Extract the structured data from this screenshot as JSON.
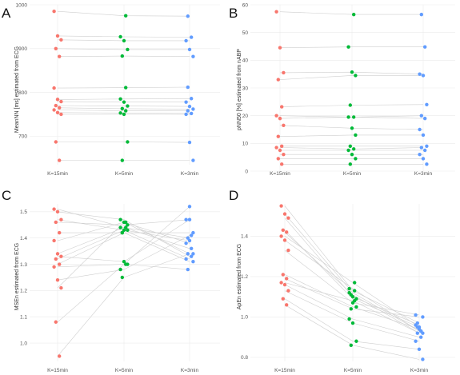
{
  "colors": {
    "t15": "#F8766D",
    "t5": "#00BA38",
    "t3": "#619CFF"
  },
  "chart_data": [
    {
      "type": "scatter",
      "panel_label": "A",
      "categories": [
        "K=15min",
        "K=5min",
        "K=3min"
      ],
      "ylabel": "MeanNN [ms] estimated from ECG",
      "ylim": [
        635,
        1000
      ],
      "yticks": [
        "700",
        "800",
        "900",
        "1000"
      ],
      "ytick_values": [
        700,
        800,
        900,
        1000
      ],
      "series": [
        {
          "values": [
            985,
            975,
            974
          ]
        },
        {
          "values": [
            929,
            927,
            926
          ]
        },
        {
          "values": [
            920,
            918,
            918
          ]
        },
        {
          "values": [
            900,
            898,
            898
          ]
        },
        {
          "values": [
            882,
            883,
            882
          ]
        },
        {
          "values": [
            810,
            811,
            812
          ]
        },
        {
          "values": [
            784,
            785,
            786
          ]
        },
        {
          "values": [
            779,
            778,
            778
          ]
        },
        {
          "values": [
            770,
            769,
            768
          ]
        },
        {
          "values": [
            765,
            763,
            762
          ]
        },
        {
          "values": [
            760,
            758,
            758
          ]
        },
        {
          "values": [
            754,
            753,
            752
          ]
        },
        {
          "values": [
            750,
            750,
            750
          ]
        },
        {
          "values": [
            687,
            687,
            686
          ]
        },
        {
          "values": [
            645,
            645,
            645
          ]
        }
      ]
    },
    {
      "type": "scatter",
      "panel_label": "B",
      "categories": [
        "K=15min",
        "K=5min",
        "K=3min"
      ],
      "ylabel": "pNN50 [%] estimated from nABP",
      "ylim": [
        0,
        60
      ],
      "yticks": [
        "0",
        "10",
        "20",
        "30",
        "40",
        "50",
        "60"
      ],
      "ytick_values": [
        0,
        10,
        20,
        30,
        40,
        50,
        60
      ],
      "series": [
        {
          "values": [
            57.5,
            56.5,
            56.5
          ]
        },
        {
          "values": [
            44.5,
            44.8,
            44.8
          ]
        },
        {
          "values": [
            35.5,
            35.7,
            35.0
          ]
        },
        {
          "values": [
            33.0,
            34.5,
            34.5
          ]
        },
        {
          "values": [
            23.2,
            23.8,
            24.0
          ]
        },
        {
          "values": [
            20.0,
            19.5,
            20.0
          ]
        },
        {
          "values": [
            19.0,
            19.5,
            19.0
          ]
        },
        {
          "values": [
            16.5,
            15.5,
            15.0
          ]
        },
        {
          "values": [
            12.5,
            13.0,
            13.0
          ]
        },
        {
          "values": [
            9.0,
            9.0,
            9.0
          ]
        },
        {
          "values": [
            8.5,
            8.0,
            8.5
          ]
        },
        {
          "values": [
            7.5,
            7.5,
            7.5
          ]
        },
        {
          "values": [
            6.0,
            6.0,
            6.0
          ]
        },
        {
          "values": [
            4.5,
            4.5,
            4.5
          ]
        },
        {
          "values": [
            2.5,
            2.5,
            2.5
          ]
        }
      ]
    },
    {
      "type": "scatter",
      "panel_label": "C",
      "categories": [
        "K=15min",
        "K=5min",
        "K=3min"
      ],
      "ylabel": "MSEn estimated from ECG",
      "ylim": [
        0.93,
        1.53
      ],
      "yticks": [
        "1.0",
        "1.1",
        "1.2",
        "1.3",
        "1.4",
        "1.5"
      ],
      "ytick_values": [
        1.0,
        1.1,
        1.2,
        1.3,
        1.4,
        1.5
      ],
      "series": [
        {
          "values": [
            1.51,
            1.44,
            1.4
          ]
        },
        {
          "values": [
            1.5,
            1.47,
            1.33
          ]
        },
        {
          "values": [
            1.47,
            1.43,
            1.32
          ]
        },
        {
          "values": [
            1.46,
            1.45,
            1.47
          ]
        },
        {
          "values": [
            1.42,
            1.42,
            1.42
          ]
        },
        {
          "values": [
            1.39,
            1.46,
            1.34
          ]
        },
        {
          "values": [
            1.34,
            1.44,
            1.36
          ]
        },
        {
          "values": [
            1.33,
            1.31,
            1.47
          ]
        },
        {
          "values": [
            1.32,
            1.43,
            1.39
          ]
        },
        {
          "values": [
            1.3,
            1.42,
            1.31
          ]
        },
        {
          "values": [
            1.29,
            1.3,
            1.28
          ]
        },
        {
          "values": [
            1.24,
            1.28,
            1.41
          ]
        },
        {
          "values": [
            1.21,
            1.46,
            1.38
          ]
        },
        {
          "values": [
            1.08,
            1.3,
            1.52
          ]
        },
        {
          "values": [
            0.95,
            1.25,
            1.34
          ]
        }
      ]
    },
    {
      "type": "scatter",
      "panel_label": "D",
      "categories": [
        "K=15min",
        "K=5min",
        "K=3min"
      ],
      "ylabel": "ApEn estimated from ECG",
      "ylim": [
        0.78,
        1.56
      ],
      "yticks": [
        "0.8",
        "1.0",
        "1.2",
        "1.4"
      ],
      "ytick_values": [
        0.8,
        1.0,
        1.2,
        1.4
      ],
      "series": [
        {
          "values": [
            1.55,
            1.13,
            0.97
          ]
        },
        {
          "values": [
            1.51,
            1.12,
            0.93
          ]
        },
        {
          "values": [
            1.49,
            1.1,
            0.96
          ]
        },
        {
          "values": [
            1.43,
            1.09,
            0.95
          ]
        },
        {
          "values": [
            1.42,
            1.11,
            0.92
          ]
        },
        {
          "values": [
            1.4,
            1.17,
            0.95
          ]
        },
        {
          "values": [
            1.38,
            1.14,
            0.93
          ]
        },
        {
          "values": [
            1.33,
            1.07,
            1.01
          ]
        },
        {
          "values": [
            1.21,
            1.05,
            0.94
          ]
        },
        {
          "values": [
            1.19,
            1.04,
            1.0
          ]
        },
        {
          "values": [
            1.17,
            1.08,
            0.92
          ]
        },
        {
          "values": [
            1.16,
            0.99,
            0.9
          ]
        },
        {
          "values": [
            1.13,
            0.97,
            0.88
          ]
        },
        {
          "values": [
            1.09,
            0.88,
            0.84
          ]
        },
        {
          "values": [
            1.06,
            0.86,
            0.79
          ]
        }
      ]
    }
  ]
}
